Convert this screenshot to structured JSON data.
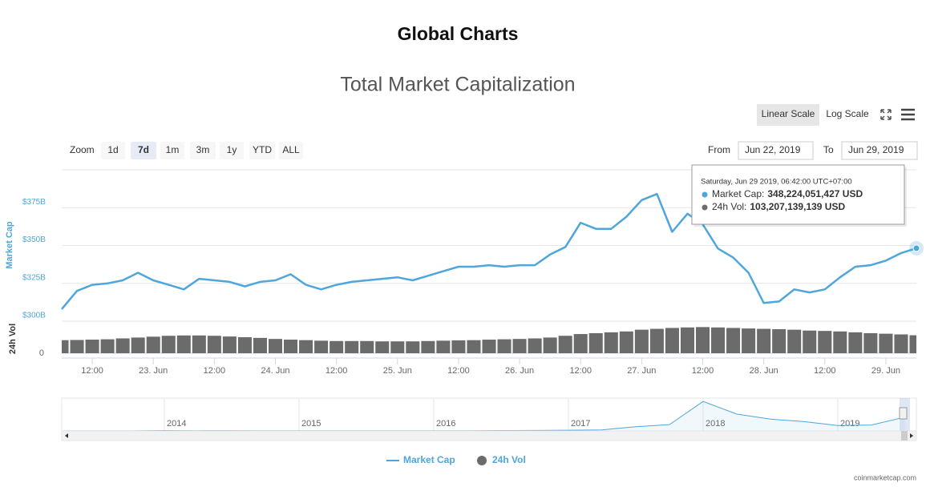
{
  "header": {
    "title": "Global Charts"
  },
  "chart_data": {
    "type": "line",
    "title": "Total Market Capitalization",
    "scale_buttons": [
      "Linear Scale",
      "Log Scale"
    ],
    "selected_scale": 0,
    "zoom_label": "Zoom",
    "zoom_buttons": [
      "1d",
      "7d",
      "1m",
      "3m",
      "1y",
      "YTD",
      "ALL"
    ],
    "selected_zoom": 1,
    "from_label": "From",
    "from": "Jun 22, 2019",
    "to_label": "To",
    "to": "Jun 29, 2019",
    "ylabel": "Market Cap",
    "y2label": "24h Vol",
    "grid": true,
    "categories": [
      null,
      null,
      "12:00",
      null,
      null,
      null,
      "23. Jun",
      null,
      null,
      null,
      "12:00",
      null,
      null,
      null,
      "24. Jun",
      null,
      null,
      null,
      "12:00",
      null,
      null,
      null,
      "25. Jun",
      null,
      null,
      null,
      "12:00",
      null,
      null,
      null,
      "26. Jun",
      null,
      null,
      null,
      "12:00",
      null,
      null,
      null,
      "27. Jun",
      null,
      null,
      null,
      "12:00",
      null,
      null,
      null,
      "28. Jun",
      null,
      null,
      null,
      "12:00",
      null,
      null,
      null,
      "29. Jun",
      null,
      null
    ],
    "ylim": [
      300,
      400
    ],
    "yticks": [
      {
        "value": 300,
        "label": "$300B"
      },
      {
        "value": 325,
        "label": "$325B"
      },
      {
        "value": 350,
        "label": "$350B"
      },
      {
        "value": 375,
        "label": "$375B"
      }
    ],
    "y2lim": [
      0,
      170
    ],
    "y2ticks": [
      0
    ],
    "series": [
      {
        "name": "Market Cap",
        "type": "line",
        "color": "#4ea6dc",
        "values": [
          308,
          320,
          324,
          325,
          327,
          332,
          327,
          324,
          321,
          328,
          327,
          326,
          323,
          326,
          327,
          331,
          324,
          321,
          324,
          326,
          327,
          328,
          329,
          327,
          330,
          333,
          336,
          336,
          337,
          336,
          337,
          337,
          344,
          349,
          365,
          361,
          361,
          369,
          380,
          384,
          359,
          371,
          364,
          348,
          342,
          332,
          312,
          313,
          321,
          319,
          321,
          329,
          336,
          337,
          340,
          345,
          348.2
        ]
      },
      {
        "name": "24h Vol",
        "type": "column",
        "axis": "y2",
        "color": "#6b6b6b",
        "values": [
          75,
          76,
          78,
          80,
          85,
          90,
          95,
          100,
          102,
          102,
          100,
          96,
          92,
          88,
          82,
          78,
          75,
          72,
          70,
          70,
          70,
          68,
          68,
          68,
          70,
          72,
          74,
          75,
          78,
          80,
          82,
          85,
          90,
          100,
          110,
          115,
          120,
          125,
          135,
          140,
          145,
          148,
          150,
          148,
          145,
          142,
          140,
          138,
          135,
          130,
          128,
          125,
          120,
          115,
          112,
          108,
          103.2
        ]
      }
    ],
    "tooltip": {
      "date": "Saturday, Jun 29 2019, 06:42:00 UTC+07:00",
      "items": [
        {
          "label": "Market Cap:",
          "value": "348,224,051,427 USD"
        },
        {
          "label": "24h Vol:",
          "value": "103,207,139,139 USD"
        }
      ]
    },
    "navigator": {
      "categories": [
        null,
        null,
        null,
        "2014",
        null,
        null,
        null,
        "2015",
        null,
        null,
        null,
        "2016",
        null,
        null,
        null,
        "2017",
        null,
        null,
        null,
        "2018",
        null,
        null,
        null,
        "2019",
        null,
        null
      ],
      "values": [
        1.5,
        1,
        2,
        10,
        6,
        8,
        6,
        4,
        3.5,
        3.5,
        3.5,
        6,
        6,
        10,
        12,
        17,
        25,
        100,
        150,
        700,
        400,
        280,
        220,
        130,
        140,
        330
      ],
      "ylim": [
        0,
        780
      ]
    },
    "legend_position": "bottom",
    "credits": "coinmarketcap.com"
  }
}
